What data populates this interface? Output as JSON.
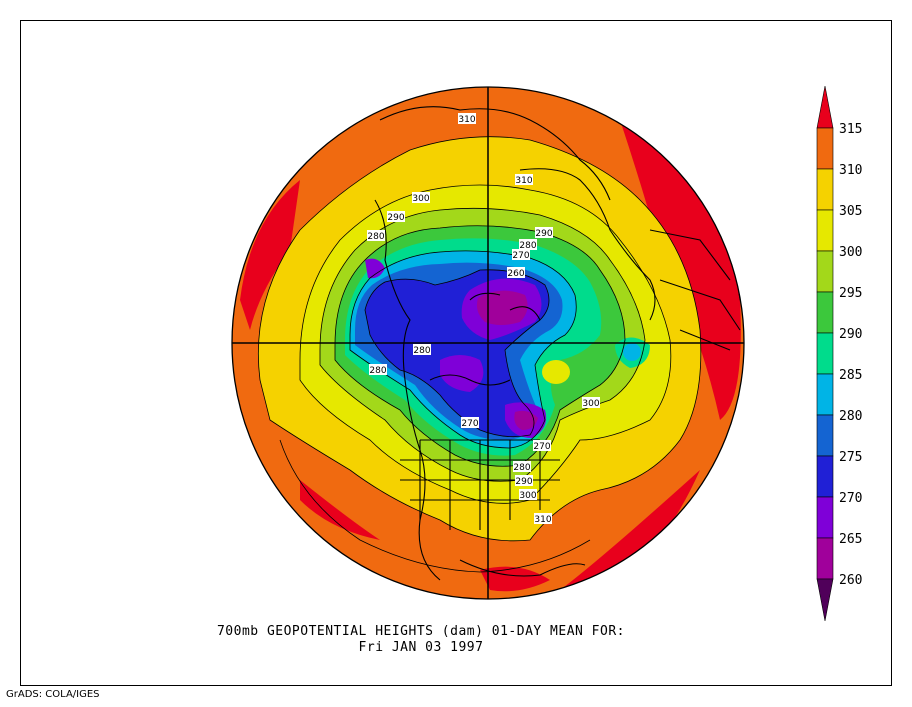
{
  "title_line1": "700mb GEOPOTENTIAL HEIGHTS (dam)   01-DAY MEAN FOR:",
  "title_line2": "Fri JAN 03 1997",
  "credit": "GrADS: COLA/IGES",
  "colorbar": {
    "levels": [
      {
        "label": "315",
        "color": "#e8001c"
      },
      {
        "label": "310",
        "color": "#f06a10"
      },
      {
        "label": "305",
        "color": "#f5d200"
      },
      {
        "label": "300",
        "color": "#e6e800"
      },
      {
        "label": "295",
        "color": "#a3d81a"
      },
      {
        "label": "290",
        "color": "#3cc83c"
      },
      {
        "label": "285",
        "color": "#00dc8c"
      },
      {
        "label": "280",
        "color": "#00b4e6"
      },
      {
        "label": "275",
        "color": "#1464d2"
      },
      {
        "label": "270",
        "color": "#2020d6"
      },
      {
        "label": "265",
        "color": "#7f00d8"
      },
      {
        "label": "260",
        "color": "#a0009b"
      }
    ],
    "bottom_color": "#50005a",
    "top_color": "#e8001c"
  },
  "contour_labels": [
    "310",
    "310",
    "300",
    "290",
    "280",
    "290",
    "280",
    "270",
    "260",
    "280",
    "280",
    "300",
    "270",
    "270",
    "280",
    "290",
    "300",
    "310"
  ]
}
